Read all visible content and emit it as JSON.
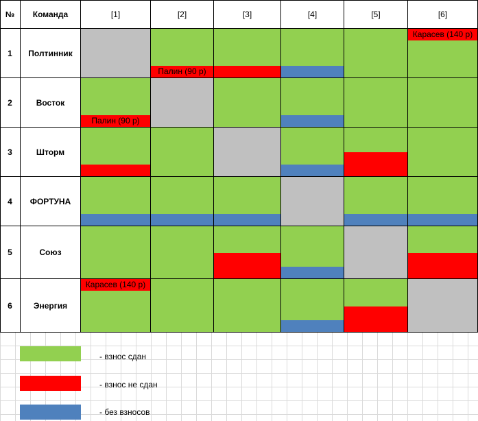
{
  "colors": {
    "paid": "#92d050",
    "unpaid": "#ff0000",
    "no_fee": "#4f81bd",
    "self_match": "#c0c0c0"
  },
  "table": {
    "header": {
      "num": "№",
      "team": "Команда",
      "rounds": [
        "[1]",
        "[2]",
        "[3]",
        "[4]",
        "[5]",
        "[6]"
      ]
    },
    "rows": [
      {
        "num": "1",
        "team": "Полтинник",
        "cells": [
          {
            "state": "self"
          },
          {
            "state": "paid",
            "note": "Палин (90 р)",
            "note_pos": "bottom"
          },
          {
            "state": "paid",
            "strip": "red"
          },
          {
            "state": "paid",
            "strip": "blue"
          },
          {
            "state": "paid"
          },
          {
            "state": "paid",
            "note": "Карасев (140 р)",
            "note_pos": "top"
          }
        ]
      },
      {
        "num": "2",
        "team": "Восток",
        "cells": [
          {
            "state": "paid",
            "note": "Палин (90 р)",
            "note_pos": "bottom"
          },
          {
            "state": "self"
          },
          {
            "state": "paid"
          },
          {
            "state": "paid",
            "strip": "blue"
          },
          {
            "state": "paid"
          },
          {
            "state": "paid"
          }
        ]
      },
      {
        "num": "3",
        "team": "Шторм",
        "cells": [
          {
            "state": "paid",
            "strip": "red"
          },
          {
            "state": "paid"
          },
          {
            "state": "self"
          },
          {
            "state": "paid",
            "strip": "blue"
          },
          {
            "state": "paid",
            "strip": "red-big"
          },
          {
            "state": "paid"
          }
        ]
      },
      {
        "num": "4",
        "team": "ФОРТУНА",
        "cells": [
          {
            "state": "paid",
            "strip": "blue"
          },
          {
            "state": "paid",
            "strip": "blue"
          },
          {
            "state": "paid",
            "strip": "blue"
          },
          {
            "state": "self"
          },
          {
            "state": "paid",
            "strip": "blue"
          },
          {
            "state": "paid",
            "strip": "blue"
          }
        ]
      },
      {
        "num": "5",
        "team": "Союз",
        "cells": [
          {
            "state": "paid"
          },
          {
            "state": "paid"
          },
          {
            "state": "paid",
            "strip": "red-big"
          },
          {
            "state": "paid",
            "strip": "blue"
          },
          {
            "state": "self"
          },
          {
            "state": "paid",
            "strip": "red-big"
          }
        ]
      },
      {
        "num": "6",
        "team": "Энергия",
        "cells": [
          {
            "state": "paid",
            "note": "Карасев (140 р)",
            "note_pos": "top"
          },
          {
            "state": "paid"
          },
          {
            "state": "paid"
          },
          {
            "state": "paid",
            "strip": "blue"
          },
          {
            "state": "paid",
            "strip": "red-big"
          },
          {
            "state": "self"
          }
        ]
      }
    ]
  },
  "legend": [
    {
      "color_key": "paid",
      "label": "- взнос сдан"
    },
    {
      "color_key": "unpaid",
      "label": "- взнос не сдан"
    },
    {
      "color_key": "no_fee",
      "label": "- без взносов"
    }
  ]
}
